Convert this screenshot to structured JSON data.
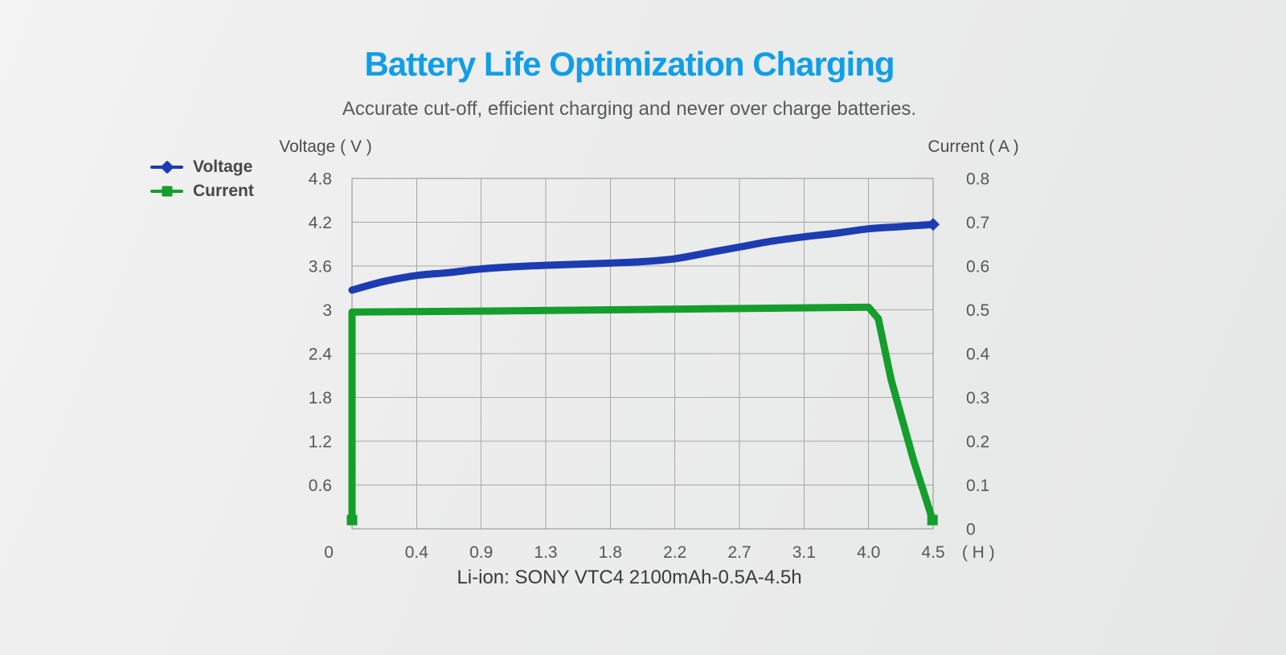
{
  "page": {
    "title": "Battery Life Optimization Charging",
    "subtitle": "Accurate cut-off, efficient charging and never over charge batteries.",
    "caption": "Li-ion: SONY VTC4 2100mAh-0.5A-4.5h"
  },
  "colors": {
    "title_accent": "#109ee8",
    "voltage_line": "#1c3cb2",
    "current_line": "#149e2b",
    "grid_line": "#a7a7a7",
    "plot_border": "#8f8f8f",
    "tick_text": "#575757"
  },
  "legend": [
    {
      "label": "Voltage",
      "color": "#1c3cb2",
      "marker": "diamond"
    },
    {
      "label": "Current",
      "color": "#149e2b",
      "marker": "square"
    }
  ],
  "chart_data": {
    "type": "line",
    "title": "Battery Life Optimization Charging",
    "subtitle": "Accurate cut-off, efficient charging and never over charge batteries.",
    "footnote": "Li-ion: SONY VTC4 2100mAh-0.5A-4.5h",
    "grid": "on",
    "legend_position": "top-left",
    "x_axis": {
      "unit_label": "( H )",
      "unit_gi": 9.7,
      "columns": 9,
      "note": "gi = evenly spaced grid column position; hour labels are non-linear",
      "ticks": [
        {
          "label": "0",
          "hour": 0.0,
          "gi": -0.36
        },
        {
          "label": "0.4",
          "hour": 0.4,
          "gi": 1
        },
        {
          "label": "0.9",
          "hour": 0.9,
          "gi": 2
        },
        {
          "label": "1.3",
          "hour": 1.3,
          "gi": 3
        },
        {
          "label": "1.8",
          "hour": 1.8,
          "gi": 4
        },
        {
          "label": "2.2",
          "hour": 2.2,
          "gi": 5
        },
        {
          "label": "2.7",
          "hour": 2.7,
          "gi": 6
        },
        {
          "label": "3.1",
          "hour": 3.1,
          "gi": 7
        },
        {
          "label": "4.0",
          "hour": 4.0,
          "gi": 8
        },
        {
          "label": "4.5",
          "hour": 4.5,
          "gi": 9
        }
      ]
    },
    "y_left": {
      "label": "Voltage ( V )",
      "min": 0,
      "max": 4.8,
      "step": 0.6,
      "ticks": [
        {
          "label": "4.8",
          "value": 4.8
        },
        {
          "label": "4.2",
          "value": 4.2
        },
        {
          "label": "3.6",
          "value": 3.6
        },
        {
          "label": "3",
          "value": 3.0
        },
        {
          "label": "2.4",
          "value": 2.4
        },
        {
          "label": "1.8",
          "value": 1.8
        },
        {
          "label": "1.2",
          "value": 1.2
        },
        {
          "label": "0.6",
          "value": 0.6
        }
      ]
    },
    "y_right": {
      "label": "Current ( A )",
      "min": 0,
      "max": 0.8,
      "step": 0.1,
      "ticks": [
        {
          "label": "0.8",
          "value": 0.8
        },
        {
          "label": "0.7",
          "value": 0.7
        },
        {
          "label": "0.6",
          "value": 0.6
        },
        {
          "label": "0.5",
          "value": 0.5
        },
        {
          "label": "0.4",
          "value": 0.4
        },
        {
          "label": "0.3",
          "value": 0.3
        },
        {
          "label": "0.2",
          "value": 0.2
        },
        {
          "label": "0.1",
          "value": 0.1
        },
        {
          "label": "0",
          "value": 0.0
        }
      ]
    },
    "series": [
      {
        "name": "Voltage",
        "axis": "left",
        "unit": "V",
        "color": "#1c3cb2",
        "smooth": true,
        "marker_shape": "diamond",
        "marker_points": [
          [
            9,
            4.17
          ]
        ],
        "points": [
          [
            0,
            3.27
          ],
          [
            0.5,
            3.39
          ],
          [
            1,
            3.47
          ],
          [
            1.5,
            3.51
          ],
          [
            2,
            3.56
          ],
          [
            2.5,
            3.59
          ],
          [
            3,
            3.61
          ],
          [
            4,
            3.64
          ],
          [
            4.5,
            3.66
          ],
          [
            5,
            3.7
          ],
          [
            5.5,
            3.78
          ],
          [
            6,
            3.86
          ],
          [
            6.5,
            3.94
          ],
          [
            7,
            4.0
          ],
          [
            7.5,
            4.05
          ],
          [
            8,
            4.11
          ],
          [
            8.5,
            4.14
          ],
          [
            9,
            4.17
          ]
        ]
      },
      {
        "name": "Current",
        "axis": "right",
        "unit": "A",
        "color": "#149e2b",
        "smooth": false,
        "marker_shape": "square",
        "marker_points": [
          [
            0,
            0.02
          ],
          [
            8.99,
            0.02
          ]
        ],
        "points": [
          [
            0,
            0.02
          ],
          [
            0,
            0.495
          ],
          [
            2,
            0.497
          ],
          [
            4,
            0.5
          ],
          [
            6,
            0.503
          ],
          [
            8,
            0.506
          ],
          [
            8.15,
            0.48
          ],
          [
            8.35,
            0.34
          ],
          [
            8.7,
            0.155
          ],
          [
            8.95,
            0.04
          ],
          [
            8.99,
            0.02
          ]
        ]
      }
    ]
  }
}
